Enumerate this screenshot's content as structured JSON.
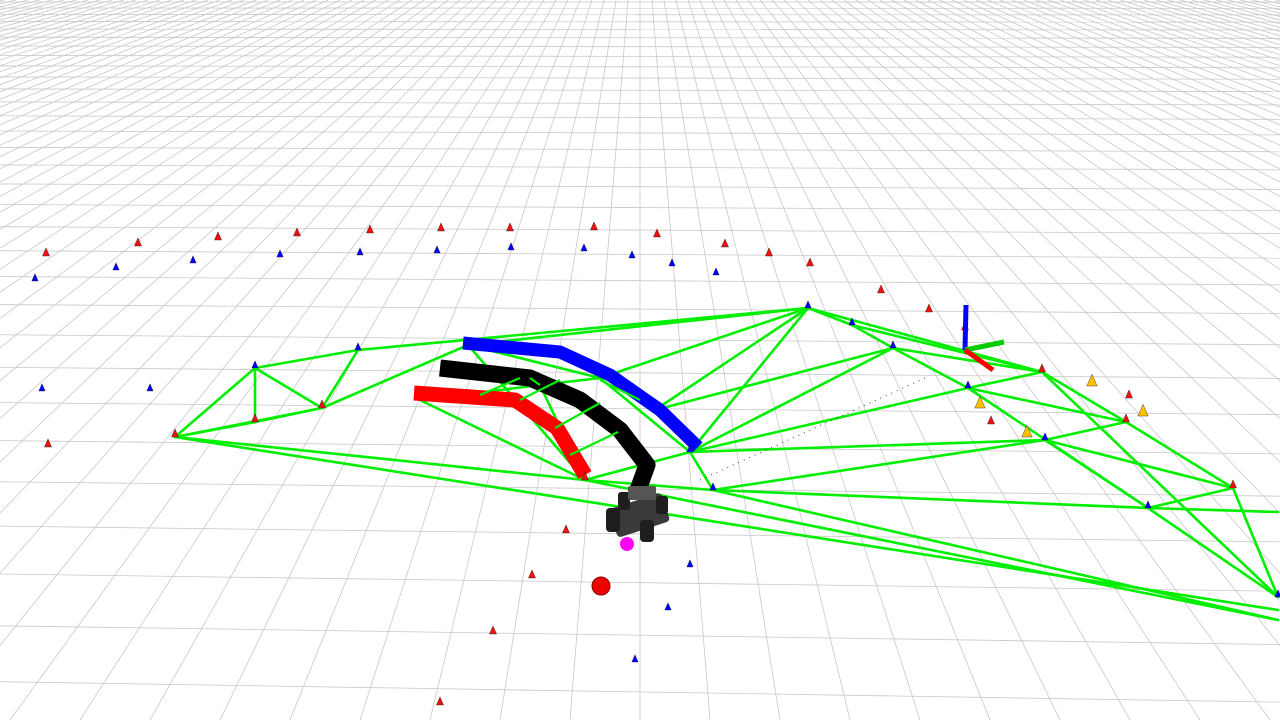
{
  "scene": {
    "background_color": "#ffffff",
    "grid_color": "#c8c8c8",
    "triangulation_color": "#00ee00",
    "path_colors": {
      "left_boundary": "#ff0000",
      "center_line": "#000000",
      "right_boundary": "#0000ff"
    },
    "cone_colors": {
      "blue": "#0000ff",
      "yellow": "#ffc000",
      "orange": "#ff8800",
      "red": "#ee1111"
    },
    "vehicle": {
      "type": "race-car-model",
      "body_color": "#3a3a3a",
      "marker_color": "#ff00ff"
    },
    "goal_marker_color": "#ee0000",
    "tf_axes": {
      "x_color": "#ff0000",
      "y_color": "#00cc00",
      "z_color": "#0000ff"
    },
    "icons": [
      "cone-marker-icon",
      "axis-frame-icon",
      "vehicle-icon",
      "sphere-marker-icon"
    ]
  }
}
